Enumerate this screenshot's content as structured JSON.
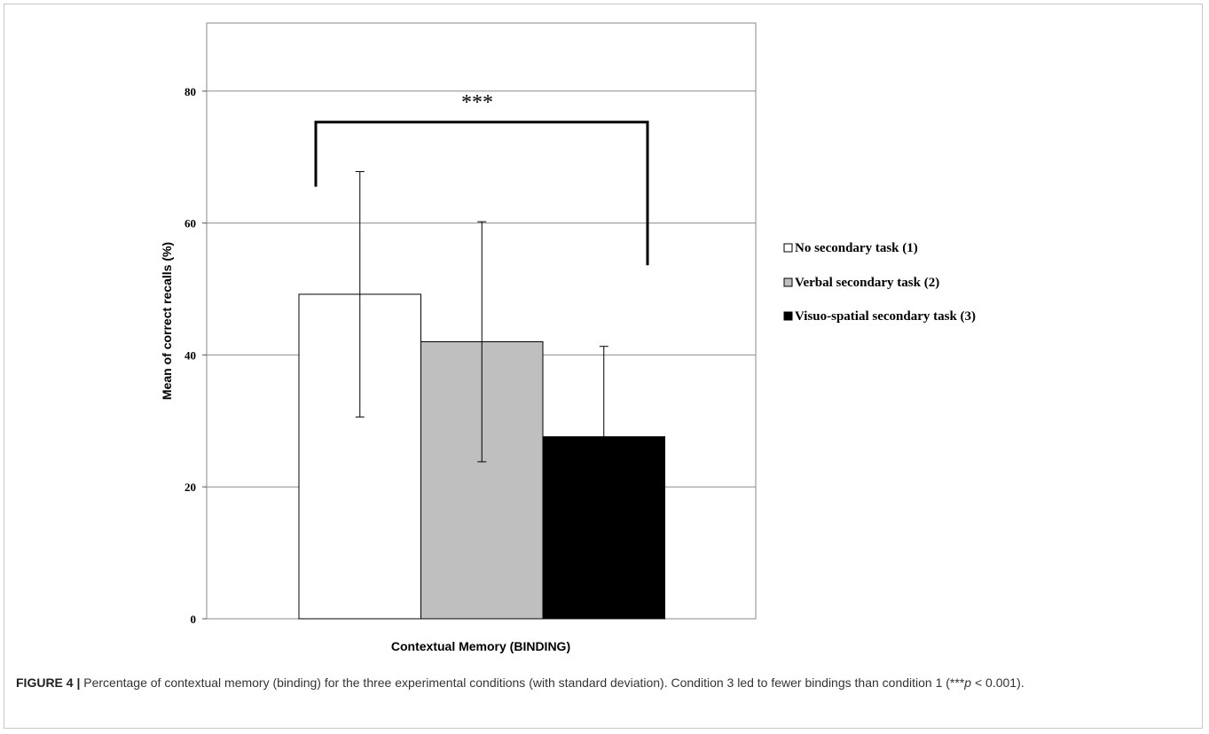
{
  "chart_data": {
    "type": "bar",
    "categories": [
      "Contextual Memory (BINDING)"
    ],
    "series": [
      {
        "name": "No secondary task (1)",
        "values": [
          49.2
        ],
        "sd": [
          18.6
        ],
        "color": "#ffffff"
      },
      {
        "name": "Verbal secondary task (2)",
        "values": [
          42.0
        ],
        "sd": [
          18.2
        ],
        "color": "#bfbfbf"
      },
      {
        "name": "Visuo-spatial secondary task (3)",
        "values": [
          27.6
        ],
        "sd": [
          13.7
        ],
        "color": "#000000"
      }
    ],
    "xlabel": "Contextual Memory (BINDING)",
    "ylabel": "Mean of correct recalls (%)",
    "ylim": [
      0,
      90
    ],
    "yticks": [
      0,
      20,
      40,
      60,
      80
    ],
    "ytick_labels": [
      "0",
      "20",
      "40",
      "60",
      "80"
    ],
    "grid": true,
    "legend_position": "right",
    "annotation": {
      "text": "***",
      "between": [
        "No secondary task (1)",
        "Visuo-spatial secondary task (3)"
      ]
    }
  },
  "caption": {
    "figure_label": "FIGURE 4 |",
    "text_before": " Percentage of contextual memory (binding) for the three experimental conditions (with standard deviation). Condition 3 led to fewer bindings than condition 1 (***",
    "p_symbol": "p",
    "text_after": " < 0.001)."
  }
}
